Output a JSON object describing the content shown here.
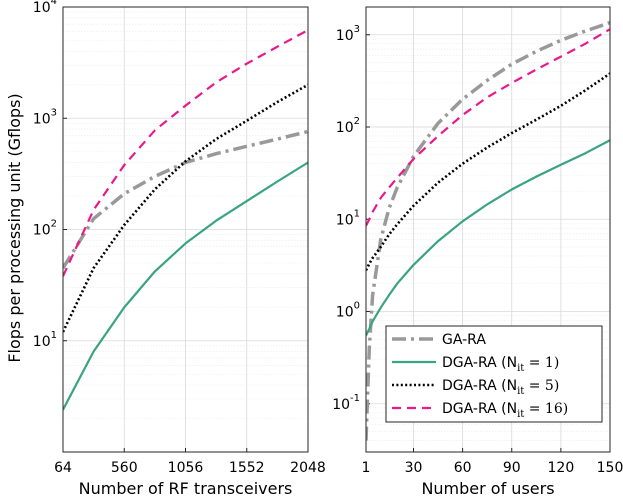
{
  "ylabel": "Flops per processing unit (Gflops)",
  "colors": {
    "ga_ra": "#999999",
    "nit1": "#3aa383",
    "nit5": "#000000",
    "nit16": "#e8198c"
  },
  "chart_data": [
    {
      "type": "line",
      "panel": "left",
      "xlabel": "Number of RF transceivers",
      "ylabel": "Flops per processing unit (Gflops)",
      "yscale": "log",
      "xlim": [
        64,
        2048
      ],
      "ylim": [
        1,
        10000
      ],
      "xticks": [
        64,
        560,
        1056,
        1552,
        2048
      ],
      "yticks": [
        {
          "value": 10,
          "base": "10",
          "exp": "1"
        },
        {
          "value": 100,
          "base": "10",
          "exp": "2"
        },
        {
          "value": 1000,
          "base": "10",
          "exp": "3"
        },
        {
          "value": 10000,
          "base": "10",
          "exp": "4"
        }
      ],
      "x": [
        64,
        312,
        560,
        808,
        1056,
        1304,
        1552,
        1800,
        2048
      ],
      "series": [
        {
          "name": "GA-RA",
          "key": "ga_ra",
          "values": [
            45,
            125,
            210,
            300,
            400,
            480,
            560,
            650,
            760
          ]
        },
        {
          "name": "DGA-RA (N_it = 1)",
          "key": "nit1",
          "values": [
            2.4,
            8,
            20,
            42,
            75,
            120,
            180,
            270,
            400
          ]
        },
        {
          "name": "DGA-RA (N_it = 5)",
          "key": "nit5",
          "values": [
            12,
            45,
            110,
            230,
            410,
            650,
            950,
            1400,
            2000
          ]
        },
        {
          "name": "DGA-RA (N_it = 16)",
          "key": "nit16",
          "values": [
            38,
            150,
            380,
            780,
            1300,
            2100,
            3100,
            4400,
            6200
          ]
        }
      ]
    },
    {
      "type": "line",
      "panel": "right",
      "xlabel": "Number of users",
      "yscale": "log",
      "xlim": [
        1,
        150
      ],
      "ylim": [
        0.03,
        2000
      ],
      "xticks": [
        1,
        30,
        60,
        90,
        120,
        150
      ],
      "yticks": [
        {
          "value": 0.1,
          "base": "10",
          "exp": "-1"
        },
        {
          "value": 1,
          "label": "10",
          "exp": "0"
        },
        {
          "value": 10,
          "label": "10",
          "exp": "1"
        },
        {
          "value": 100,
          "label": "10",
          "exp": "2"
        },
        {
          "value": 1000,
          "label": "10",
          "exp": "3"
        }
      ],
      "x": [
        1,
        3,
        5,
        10,
        15,
        20,
        30,
        45,
        60,
        75,
        90,
        105,
        120,
        135,
        150
      ],
      "series": [
        {
          "name": "GA-RA",
          "key": "ga_ra",
          "values": [
            0.04,
            0.4,
            1.5,
            6,
            13,
            22,
            48,
            110,
            200,
            320,
            480,
            660,
            870,
            1100,
            1350
          ]
        },
        {
          "name": "DGA-RA (N_it = 1)",
          "key": "nit1",
          "values": [
            0.55,
            0.65,
            0.78,
            1.1,
            1.5,
            2.0,
            3.2,
            5.8,
            9.5,
            14.5,
            21,
            29,
            39,
            52,
            72
          ]
        },
        {
          "name": "DGA-RA (N_it = 5)",
          "key": "nit5",
          "values": [
            2.8,
            3.3,
            3.8,
            5.0,
            6.8,
            8.8,
            14,
            25,
            40,
            60,
            86,
            120,
            170,
            250,
            380
          ]
        },
        {
          "name": "DGA-RA (N_it = 16)",
          "key": "nit16",
          "values": [
            8.5,
            10,
            12,
            17,
            22,
            28,
            45,
            80,
            135,
            210,
            300,
            420,
            580,
            800,
            1150
          ]
        }
      ]
    }
  ],
  "legend": {
    "position": "bottom-right",
    "entries": [
      {
        "key": "ga_ra",
        "label": "GA-RA",
        "sub": ""
      },
      {
        "key": "nit1",
        "label": "DGA-RA (N",
        "sub": "it",
        "suffix": " = 1)"
      },
      {
        "key": "nit5",
        "label": "DGA-RA (N",
        "sub": "it",
        "suffix": " = 5)"
      },
      {
        "key": "nit16",
        "label": "DGA-RA (N",
        "sub": "it",
        "suffix": " = 16)"
      }
    ]
  }
}
